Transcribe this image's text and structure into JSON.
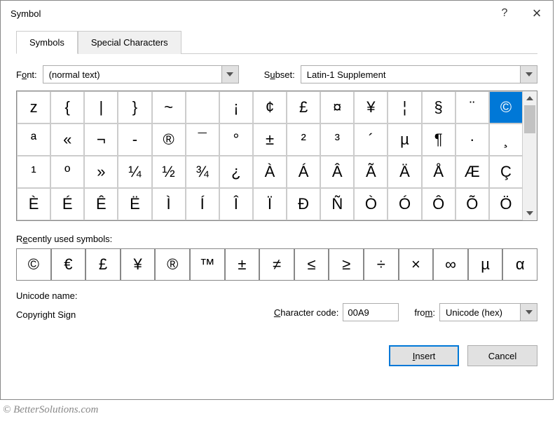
{
  "window": {
    "title": "Symbol",
    "help": "?",
    "close": "×"
  },
  "tabs": {
    "symbols": "Symbols",
    "special": "Special Characters"
  },
  "font": {
    "label_pre": "F",
    "label_und": "o",
    "label_post": "nt:",
    "value": "(normal text)"
  },
  "subset": {
    "label_pre": "S",
    "label_und": "u",
    "label_post": "bset:",
    "value": "Latin-1 Supplement"
  },
  "grid": {
    "rows": [
      [
        "z",
        "{",
        "|",
        "}",
        "~",
        "",
        "¡",
        "¢",
        "£",
        "¤",
        "¥",
        "¦",
        "§",
        "¨",
        "©"
      ],
      [
        "ª",
        "«",
        "¬",
        "-",
        "®",
        "¯",
        "°",
        "±",
        "²",
        "³",
        "´",
        "µ",
        "¶",
        "·",
        "¸"
      ],
      [
        "¹",
        "º",
        "»",
        "¼",
        "½",
        "¾",
        "¿",
        "À",
        "Á",
        "Â",
        "Ã",
        "Ä",
        "Å",
        "Æ",
        "Ç"
      ],
      [
        "È",
        "É",
        "Ê",
        "Ë",
        "Ì",
        "Í",
        "Î",
        "Ï",
        "Ð",
        "Ñ",
        "Ò",
        "Ó",
        "Ô",
        "Õ",
        "Ö"
      ]
    ],
    "selected_row": 0,
    "selected_col": 14
  },
  "recent": {
    "label_pre": "R",
    "label_und": "e",
    "label_post": "cently used symbols:",
    "items": [
      "©",
      "€",
      "£",
      "¥",
      "®",
      "™",
      "±",
      "≠",
      "≤",
      "≥",
      "÷",
      "×",
      "∞",
      "µ",
      "α"
    ]
  },
  "info": {
    "unicode_label": "Unicode name:",
    "unicode_value": "Copyright Sign",
    "charcode_pre": "",
    "charcode_und": "C",
    "charcode_post": "haracter code:",
    "charcode_value": "00A9",
    "from_pre": "fro",
    "from_und": "m",
    "from_post": ":",
    "from_value": "Unicode (hex)"
  },
  "buttons": {
    "insert_und": "I",
    "insert_post": "nsert",
    "cancel": "Cancel"
  },
  "watermark": "© BetterSolutions.com",
  "colors": {
    "accent": "#0078d7",
    "border": "#adadad",
    "cell_border": "#cccccc",
    "btn_bg": "#e1e1e1"
  }
}
